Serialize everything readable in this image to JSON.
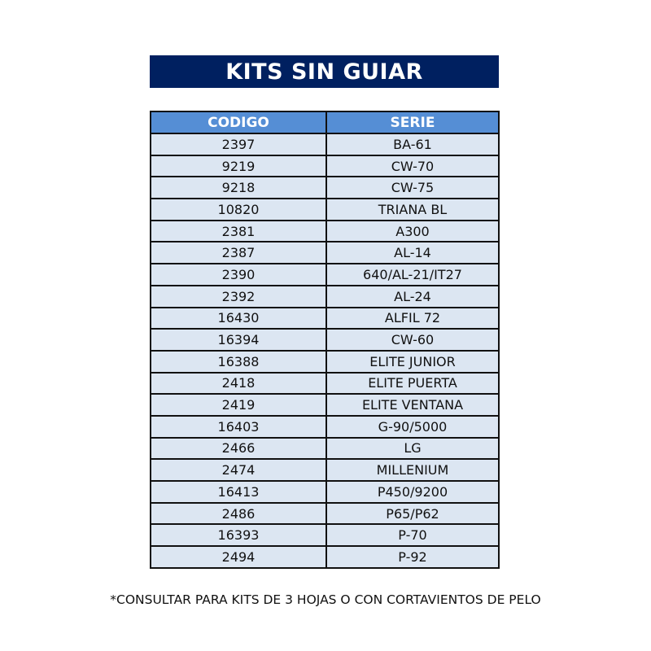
{
  "title": "KITS SIN GUIAR",
  "table": {
    "headers": [
      "CODIGO",
      "SERIE"
    ],
    "rows": [
      [
        "2397",
        "BA-61"
      ],
      [
        "9219",
        "CW-70"
      ],
      [
        "9218",
        "CW-75"
      ],
      [
        "10820",
        "TRIANA BL"
      ],
      [
        "2381",
        "A300"
      ],
      [
        "2387",
        "AL-14"
      ],
      [
        "2390",
        "640/AL-21/IT27"
      ],
      [
        "2392",
        "AL-24"
      ],
      [
        "16430",
        "ALFIL 72"
      ],
      [
        "16394",
        "CW-60"
      ],
      [
        "16388",
        "ELITE JUNIOR"
      ],
      [
        "2418",
        "ELITE PUERTA"
      ],
      [
        "2419",
        "ELITE VENTANA"
      ],
      [
        "16403",
        "G-90/5000"
      ],
      [
        "2466",
        "LG"
      ],
      [
        "2474",
        "MILLENIUM"
      ],
      [
        "16413",
        "P450/9200"
      ],
      [
        "2486",
        "P65/P62"
      ],
      [
        "16393",
        "P-70"
      ],
      [
        "2494",
        "P-92"
      ]
    ]
  },
  "footnote": "*CONSULTAR PARA KITS DE 3 HOJAS O CON CORTAVIENTOS DE PELO",
  "colors": {
    "title_bg": "#002060",
    "header_bg": "#558ED5",
    "row_bg": "#DCE6F2"
  }
}
